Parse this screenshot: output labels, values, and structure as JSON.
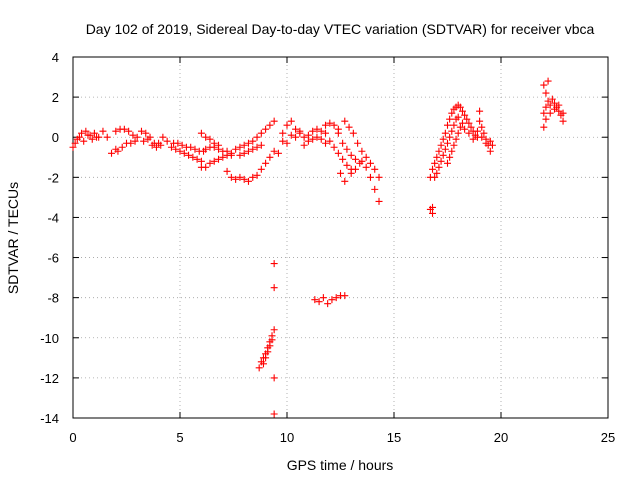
{
  "chart_data": {
    "type": "scatter",
    "title": "Day 102 of 2019, Sidereal Day-to-day VTEC variation (SDTVAR) for receiver vbca",
    "xlabel": "GPS time / hours",
    "ylabel": "SDTVAR / TECUs",
    "xlim": [
      0,
      25
    ],
    "ylim": [
      -14,
      4
    ],
    "xticks": [
      0,
      5,
      10,
      15,
      20,
      25
    ],
    "yticks": [
      -14,
      -12,
      -10,
      -8,
      -6,
      -4,
      -2,
      0,
      2,
      4
    ],
    "x_tick_labels": [
      "0",
      "5",
      "10",
      "15",
      "20",
      "25"
    ],
    "y_tick_labels": [
      "-14",
      "-12",
      "-10",
      "-8",
      "-6",
      "-4",
      "-2",
      "0",
      "2",
      "4"
    ],
    "grid": true,
    "marker": "+",
    "color": "#ff0000",
    "series": [
      {
        "name": "SDTVAR",
        "points": [
          [
            0.0,
            -0.5
          ],
          [
            0.2,
            -0.1
          ],
          [
            0.4,
            0.2
          ],
          [
            0.6,
            0.3
          ],
          [
            0.8,
            0.1
          ],
          [
            1.0,
            0.2
          ],
          [
            1.2,
            0.0
          ],
          [
            1.4,
            0.3
          ],
          [
            1.6,
            0.0
          ],
          [
            0.1,
            -0.3
          ],
          [
            0.3,
            0.0
          ],
          [
            0.5,
            -0.2
          ],
          [
            0.7,
            0.1
          ],
          [
            0.9,
            -0.1
          ],
          [
            1.1,
            0.0
          ],
          [
            1.8,
            -0.8
          ],
          [
            2.0,
            -0.6
          ],
          [
            2.0,
            0.3
          ],
          [
            2.2,
            0.4
          ],
          [
            2.4,
            0.4
          ],
          [
            2.6,
            0.3
          ],
          [
            2.8,
            0.1
          ],
          [
            3.0,
            0.0
          ],
          [
            2.1,
            -0.7
          ],
          [
            2.3,
            -0.5
          ],
          [
            2.5,
            -0.3
          ],
          [
            2.7,
            -0.3
          ],
          [
            2.9,
            -0.2
          ],
          [
            3.2,
            0.3
          ],
          [
            3.4,
            0.2
          ],
          [
            3.6,
            0.0
          ],
          [
            3.8,
            -0.3
          ],
          [
            4.0,
            -0.3
          ],
          [
            4.2,
            0.0
          ],
          [
            4.4,
            -0.2
          ],
          [
            3.3,
            -0.2
          ],
          [
            3.5,
            -0.1
          ],
          [
            3.7,
            -0.4
          ],
          [
            3.9,
            -0.5
          ],
          [
            4.1,
            -0.4
          ],
          [
            4.6,
            -0.5
          ],
          [
            4.8,
            -0.6
          ],
          [
            5.0,
            -0.7
          ],
          [
            5.2,
            -0.8
          ],
          [
            5.4,
            -0.9
          ],
          [
            5.6,
            -1.0
          ],
          [
            5.8,
            -1.1
          ],
          [
            6.0,
            -1.2
          ],
          [
            4.7,
            -0.3
          ],
          [
            4.9,
            -0.3
          ],
          [
            5.1,
            -0.4
          ],
          [
            5.3,
            -0.5
          ],
          [
            5.5,
            -0.5
          ],
          [
            5.7,
            -0.6
          ],
          [
            5.9,
            -0.7
          ],
          [
            6.1,
            -0.7
          ],
          [
            6.0,
            -1.5
          ],
          [
            6.2,
            -1.5
          ],
          [
            6.4,
            -1.3
          ],
          [
            6.6,
            -1.2
          ],
          [
            6.8,
            -1.1
          ],
          [
            7.0,
            -1.0
          ],
          [
            7.2,
            -0.9
          ],
          [
            7.4,
            -0.9
          ],
          [
            6.2,
            -0.6
          ],
          [
            6.4,
            -0.5
          ],
          [
            6.6,
            -0.5
          ],
          [
            6.8,
            -0.6
          ],
          [
            7.0,
            -0.7
          ],
          [
            7.2,
            -0.7
          ],
          [
            7.4,
            -0.8
          ],
          [
            6.0,
            0.2
          ],
          [
            6.2,
            0.0
          ],
          [
            6.4,
            -0.1
          ],
          [
            6.6,
            -0.3
          ],
          [
            6.8,
            -0.4
          ],
          [
            7.2,
            -1.7
          ],
          [
            7.4,
            -2.0
          ],
          [
            7.6,
            -2.1
          ],
          [
            7.8,
            -2.0
          ],
          [
            8.0,
            -2.1
          ],
          [
            8.2,
            -2.2
          ],
          [
            8.4,
            -2.0
          ],
          [
            8.6,
            -1.9
          ],
          [
            8.8,
            -1.6
          ],
          [
            9.0,
            -1.3
          ],
          [
            9.2,
            -1.0
          ],
          [
            9.4,
            -0.7
          ],
          [
            7.6,
            -0.6
          ],
          [
            7.8,
            -0.5
          ],
          [
            8.0,
            -0.4
          ],
          [
            8.2,
            -0.3
          ],
          [
            8.4,
            -0.2
          ],
          [
            8.6,
            0.0
          ],
          [
            8.8,
            0.2
          ],
          [
            9.0,
            0.4
          ],
          [
            9.2,
            0.6
          ],
          [
            9.4,
            0.8
          ],
          [
            7.8,
            -0.9
          ],
          [
            8.0,
            -0.8
          ],
          [
            8.2,
            -0.7
          ],
          [
            8.4,
            -0.6
          ],
          [
            8.6,
            -0.5
          ],
          [
            8.8,
            -0.4
          ],
          [
            9.6,
            -0.8
          ],
          [
            9.8,
            -0.2
          ],
          [
            10.0,
            0.6
          ],
          [
            10.2,
            0.8
          ],
          [
            10.4,
            0.4
          ],
          [
            10.6,
            0.3
          ],
          [
            9.8,
            0.2
          ],
          [
            10.0,
            -0.3
          ],
          [
            10.2,
            0.1
          ],
          [
            10.4,
            0.0
          ],
          [
            10.6,
            0.2
          ],
          [
            10.8,
            0.0
          ],
          [
            11.0,
            0.1
          ],
          [
            11.2,
            0.3
          ],
          [
            11.4,
            0.4
          ],
          [
            11.6,
            0.3
          ],
          [
            11.8,
            0.2
          ],
          [
            10.8,
            -0.4
          ],
          [
            11.0,
            -0.2
          ],
          [
            11.2,
            -0.1
          ],
          [
            11.4,
            0.0
          ],
          [
            11.6,
            -0.1
          ],
          [
            11.8,
            -0.3
          ],
          [
            11.8,
            0.6
          ],
          [
            12.0,
            0.7
          ],
          [
            12.2,
            0.6
          ],
          [
            12.4,
            0.4
          ],
          [
            12.0,
            -0.2
          ],
          [
            12.2,
            -0.5
          ],
          [
            12.4,
            -0.8
          ],
          [
            12.6,
            -1.1
          ],
          [
            12.8,
            -1.4
          ],
          [
            13.0,
            -1.6
          ],
          [
            12.4,
            0.2
          ],
          [
            12.6,
            -0.3
          ],
          [
            12.8,
            -0.6
          ],
          [
            13.0,
            -0.9
          ],
          [
            13.2,
            -1.1
          ],
          [
            13.4,
            -1.3
          ],
          [
            12.7,
            0.8
          ],
          [
            12.9,
            0.5
          ],
          [
            13.1,
            0.2
          ],
          [
            13.3,
            -0.3
          ],
          [
            13.5,
            -0.7
          ],
          [
            13.7,
            -1.0
          ],
          [
            13.9,
            -1.3
          ],
          [
            14.1,
            -1.6
          ],
          [
            14.3,
            -2.0
          ],
          [
            12.5,
            -1.8
          ],
          [
            12.7,
            -2.2
          ],
          [
            13.0,
            -1.8
          ],
          [
            13.2,
            -1.6
          ],
          [
            13.5,
            -1.2
          ],
          [
            13.7,
            -1.5
          ],
          [
            13.9,
            -2.0
          ],
          [
            14.1,
            -2.6
          ],
          [
            14.3,
            -3.2
          ],
          [
            8.7,
            -11.5
          ],
          [
            8.8,
            -11.2
          ],
          [
            8.9,
            -11.0
          ],
          [
            9.0,
            -10.8
          ],
          [
            9.1,
            -10.5
          ],
          [
            9.2,
            -10.2
          ],
          [
            9.3,
            -9.9
          ],
          [
            9.4,
            -9.6
          ],
          [
            8.9,
            -11.3
          ],
          [
            9.0,
            -11.0
          ],
          [
            9.1,
            -10.7
          ],
          [
            9.2,
            -10.4
          ],
          [
            9.3,
            -10.1
          ],
          [
            9.4,
            -6.3
          ],
          [
            9.4,
            -7.5
          ],
          [
            9.4,
            -12.0
          ],
          [
            9.4,
            -13.8
          ],
          [
            11.3,
            -8.1
          ],
          [
            11.5,
            -8.2
          ],
          [
            11.7,
            -8.0
          ],
          [
            11.9,
            -8.3
          ],
          [
            12.1,
            -8.1
          ],
          [
            12.3,
            -8.0
          ],
          [
            12.5,
            -7.9
          ],
          [
            12.7,
            -7.9
          ],
          [
            16.7,
            -3.6
          ],
          [
            16.8,
            -3.8
          ],
          [
            16.8,
            -3.5
          ],
          [
            16.7,
            -2.0
          ],
          [
            16.8,
            -1.6
          ],
          [
            16.9,
            -1.3
          ],
          [
            17.0,
            -1.0
          ],
          [
            17.1,
            -0.7
          ],
          [
            17.2,
            -0.4
          ],
          [
            17.3,
            -0.1
          ],
          [
            17.4,
            0.2
          ],
          [
            17.5,
            0.6
          ],
          [
            17.6,
            0.9
          ],
          [
            17.7,
            1.2
          ],
          [
            17.8,
            1.4
          ],
          [
            17.9,
            1.5
          ],
          [
            18.0,
            1.6
          ],
          [
            18.1,
            1.5
          ],
          [
            18.2,
            1.3
          ],
          [
            16.9,
            -2.0
          ],
          [
            17.0,
            -1.8
          ],
          [
            17.1,
            -1.5
          ],
          [
            17.2,
            -1.2
          ],
          [
            17.3,
            -0.9
          ],
          [
            17.4,
            -0.6
          ],
          [
            17.5,
            -0.3
          ],
          [
            17.6,
            0.0
          ],
          [
            17.7,
            0.3
          ],
          [
            17.8,
            0.6
          ],
          [
            17.9,
            0.9
          ],
          [
            18.0,
            1.0
          ],
          [
            17.5,
            -1.3
          ],
          [
            17.6,
            -1.0
          ],
          [
            17.7,
            -0.7
          ],
          [
            17.8,
            -0.4
          ],
          [
            17.9,
            -0.1
          ],
          [
            18.0,
            0.2
          ],
          [
            18.1,
            0.5
          ],
          [
            18.2,
            0.7
          ],
          [
            18.3,
            1.1
          ],
          [
            18.4,
            0.9
          ],
          [
            18.5,
            0.7
          ],
          [
            18.6,
            0.5
          ],
          [
            18.7,
            0.3
          ],
          [
            18.8,
            0.1
          ],
          [
            18.9,
            0.3
          ],
          [
            18.3,
            0.4
          ],
          [
            18.5,
            0.2
          ],
          [
            18.7,
            -0.1
          ],
          [
            18.9,
            0.0
          ],
          [
            19.0,
            1.3
          ],
          [
            19.0,
            0.8
          ],
          [
            19.1,
            0.5
          ],
          [
            19.2,
            0.2
          ],
          [
            19.3,
            -0.1
          ],
          [
            19.4,
            -0.4
          ],
          [
            19.5,
            -0.7
          ],
          [
            19.6,
            -0.4
          ],
          [
            19.1,
            0.0
          ],
          [
            19.3,
            -0.3
          ],
          [
            19.5,
            -0.2
          ],
          [
            22.0,
            2.6
          ],
          [
            22.1,
            2.2
          ],
          [
            22.2,
            1.8
          ],
          [
            22.3,
            1.6
          ],
          [
            22.4,
            1.9
          ],
          [
            22.5,
            1.7
          ],
          [
            22.6,
            1.5
          ],
          [
            22.7,
            1.3
          ],
          [
            22.8,
            1.1
          ],
          [
            22.9,
            0.8
          ],
          [
            22.1,
            1.5
          ],
          [
            22.3,
            1.2
          ],
          [
            22.5,
            1.4
          ],
          [
            22.7,
            1.6
          ],
          [
            22.9,
            1.2
          ],
          [
            22.0,
            0.5
          ],
          [
            22.1,
            0.9
          ],
          [
            22.2,
            2.8
          ],
          [
            22.0,
            1.2
          ]
        ]
      }
    ]
  }
}
